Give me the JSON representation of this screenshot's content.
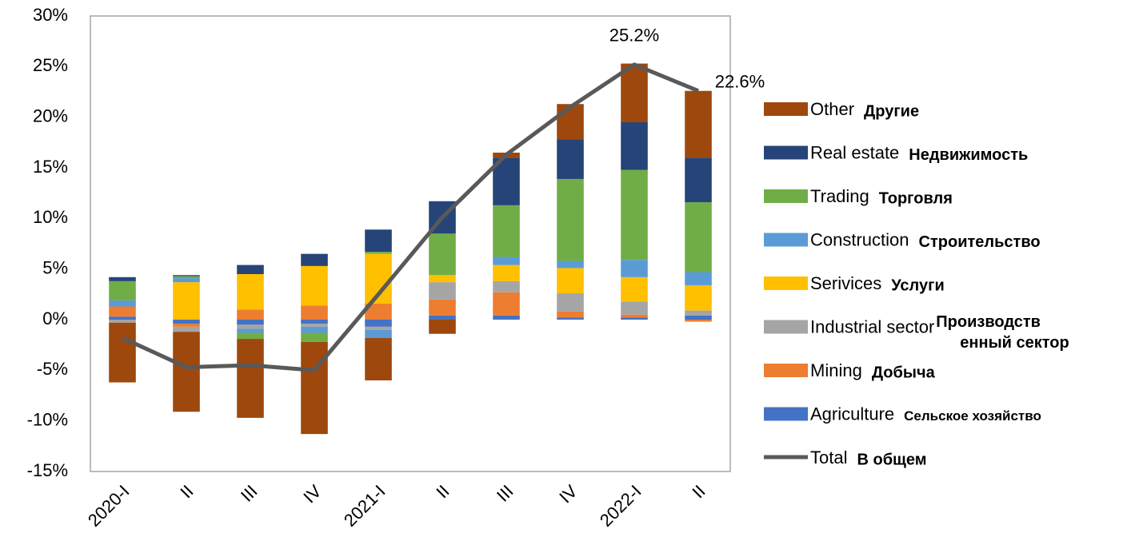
{
  "chart_data": {
    "type": "bar",
    "stacked": true,
    "categories": [
      "2020-I",
      "II",
      "III",
      "IV",
      "2021-I",
      "II",
      "III",
      "IV",
      "2022-I",
      "II"
    ],
    "ylim": [
      -15,
      30
    ],
    "yticks": [
      {
        "value": -15,
        "label": "-15%"
      },
      {
        "value": -10,
        "label": "-10%"
      },
      {
        "value": -5,
        "label": "-5%"
      },
      {
        "value": 0,
        "label": "0%"
      },
      {
        "value": 5,
        "label": "5%"
      },
      {
        "value": 10,
        "label": "10%"
      },
      {
        "value": 15,
        "label": "15%"
      },
      {
        "value": 20,
        "label": "20%"
      },
      {
        "value": 25,
        "label": "25%"
      },
      {
        "value": 30,
        "label": "30%"
      }
    ],
    "grid": false,
    "legend": "right",
    "series": [
      {
        "name": "Agriculture",
        "name_ru": [
          "Сельское хозяйство"
        ],
        "color": "#4472c4",
        "values": [
          0.3,
          -0.4,
          -0.5,
          -0.4,
          -0.7,
          0.4,
          0.4,
          0.2,
          0.2,
          0.4
        ]
      },
      {
        "name": "Mining",
        "name_ru": [
          "Добыча"
        ],
        "color": "#ed7d31",
        "values": [
          1.0,
          -0.3,
          1.0,
          1.4,
          1.6,
          1.6,
          2.3,
          0.6,
          0.3,
          -0.2
        ]
      },
      {
        "name": "Industrial sector",
        "name_ru": [
          "Производств",
          "енный сектор"
        ],
        "color": "#a5a5a5",
        "values": [
          -0.3,
          -0.5,
          -0.4,
          -0.3,
          -0.3,
          1.7,
          1.1,
          1.8,
          1.3,
          0.5
        ]
      },
      {
        "name": "Serivices",
        "name_ru": [
          "Услуги"
        ],
        "color": "#ffc000",
        "values": [
          0,
          3.7,
          3.5,
          3.9,
          4.9,
          0.7,
          1.6,
          2.5,
          2.4,
          2.5
        ]
      },
      {
        "name": "Construction",
        "name_ru": [
          "Строительство"
        ],
        "color": "#5b9bd5",
        "values": [
          0.6,
          0.4,
          -0.4,
          -0.6,
          -0.8,
          0,
          0.8,
          0.7,
          1.7,
          1.3
        ]
      },
      {
        "name": "Trading",
        "name_ru": [
          "Торговля"
        ],
        "color": "#70ad47",
        "values": [
          1.9,
          0.2,
          -0.6,
          -0.9,
          0.2,
          4.1,
          5.1,
          8.1,
          8.9,
          6.9
        ]
      },
      {
        "name": "Real estate",
        "name_ru": [
          "Недвижимость"
        ],
        "color": "#264478",
        "values": [
          0.4,
          0.1,
          0.9,
          1.2,
          2.2,
          3.2,
          4.7,
          3.9,
          4.7,
          4.4
        ]
      },
      {
        "name": "Other",
        "name_ru": [
          "Другие"
        ],
        "color": "#9e480e",
        "values": [
          -5.9,
          -7.9,
          -7.8,
          -9.1,
          -4.2,
          -1.4,
          0.5,
          3.5,
          5.8,
          6.6
        ]
      },
      {
        "name": "Total",
        "name_ru": [
          "В общем"
        ],
        "type": "line",
        "color": "#595959",
        "values": [
          -1.8,
          -4.7,
          -4.5,
          -5.0,
          2.5,
          10.1,
          16.3,
          21.0,
          25.2,
          22.6
        ],
        "value_labels": [
          null,
          null,
          null,
          null,
          null,
          null,
          null,
          null,
          "25.2%",
          "22.6%"
        ]
      }
    ]
  }
}
